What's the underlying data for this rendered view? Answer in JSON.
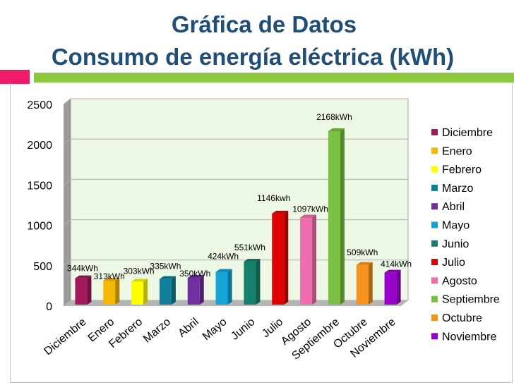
{
  "header": {
    "title": "Gráfica de Datos",
    "subtitle": "Consumo de energía eléctrica (kWh)"
  },
  "colors": {
    "title": "#1f4e79",
    "accent_pink": "#ee1c6b",
    "accent_green": "#8dc63f",
    "plot_bg": "#ecf7e4"
  },
  "chart_data": {
    "type": "bar",
    "title": "",
    "xlabel": "",
    "ylabel": "",
    "ylim": [
      0,
      2500
    ],
    "yticks": [
      "0",
      "500",
      "1000",
      "1500",
      "2000",
      "2500"
    ],
    "grid": true,
    "legend_position": "right",
    "categories": [
      "Diciembre",
      "Enero",
      "Febrero",
      "Marzo",
      "Abril",
      "Mayo",
      "Junio",
      "Julio",
      "Agosto",
      "Septiembre",
      "Octubre",
      "Noviembre"
    ],
    "values": [
      344,
      313,
      303,
      335,
      350,
      424,
      551,
      1146,
      1097,
      2168,
      509,
      414
    ],
    "data_labels": [
      "344kWh",
      "313kWh",
      "303kWh",
      "335kWh",
      "350kWh",
      "424kWh",
      "551kWh",
      "1146kwh",
      "1097kWh",
      "2168kWh",
      "509kWh",
      "414kWh"
    ],
    "bar_colors": [
      "#a3195b",
      "#f5b800",
      "#ffff00",
      "#0f7f9b",
      "#7030a0",
      "#13a4d8",
      "#17806d",
      "#e00000",
      "#ef6fae",
      "#7ac143",
      "#f7941d",
      "#9900cc"
    ]
  }
}
